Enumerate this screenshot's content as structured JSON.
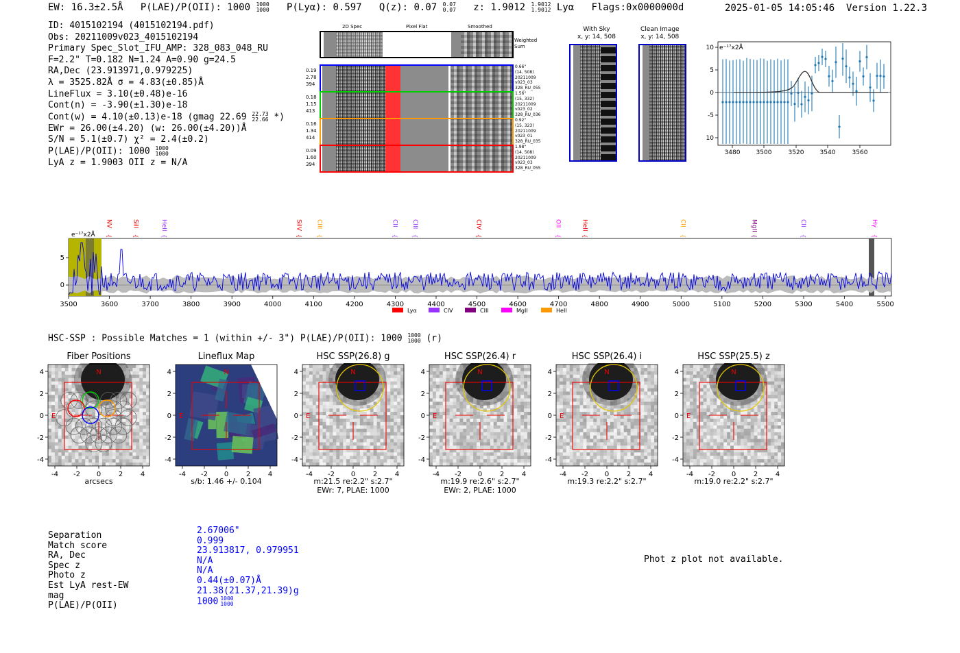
{
  "header": {
    "ew": "EW: 16.3±2.5Å",
    "plae_label": "P(LAE)/P(OII): 1000",
    "plae_sup": "1000",
    "plae_sub": "1000",
    "plya": "P(Lyα): 0.597",
    "qz_label": "Q(z): 0.07",
    "qz_sup": "0.07",
    "qz_sub": "0.07",
    "z_label": "z: 1.9012",
    "z_sup": "1.9012",
    "z_sub": "1.9012",
    "z_line": "Lyα",
    "flags": "Flags:0x0000000d",
    "datetime": "2025-01-05 14:05:46",
    "version": "Version 1.22.3"
  },
  "info": {
    "id": "ID: 4015102194 (4015102194.pdf)",
    "obs": "Obs: 20211009v023_4015102194",
    "primary": "Primary Spec_Slot_IFU_AMP: 328_083_048_RU",
    "params": "F=2.2\"  T=0.182  N=1.24  A=0.90  g=24.5",
    "radec": "RA,Dec (23.913971,0.979225)",
    "lambda": "λ = 3525.82Å  σ = 4.83(±0.85)Å",
    "lineflux": "LineFlux = 3.10(±0.48)e-16",
    "contn": "Cont(n) = -3.90(±1.30)e-18",
    "contw": "Cont(w) = 4.10(±0.13)e-18 (gmag 22.69",
    "contw_sup": "22.73",
    "contw_sub": "22.66",
    "contw_tail": "*)",
    "ewr": "EWr = 26.00(±4.20) (w: 26.00(±4.20))Å",
    "sn": "S/N = 5.1(±0.7)  χ² = 2.4(±0.2)",
    "plae": "P(LAE)/P(OII): 1000",
    "plae_sup": "1000",
    "plae_sub": "1000",
    "lya": "LyA z = 1.9003  OII z = N/A"
  },
  "cutouts": {
    "col_2d": "2D Spec",
    "col_pf": "Pixel Flat",
    "col_sm": "Smoothed",
    "weighted": "Weighted",
    "sum": "Sum",
    "rows": [
      {
        "l1": "0.19",
        "l2": "2.78",
        "l3": "394",
        "r1": "0.66\"",
        "r2": "(14, 508)",
        "r3": "20211009",
        "r4": "v023_03",
        "r5": "328_RU_055",
        "color": "#0000ff"
      },
      {
        "l1": "0.18",
        "l2": "1.15",
        "l3": "413",
        "r1": "1.56\"",
        "r2": "(15, 332)",
        "r3": "20211009",
        "r4": "v023_02",
        "r5": "328_RU_036",
        "color": "#00cc00"
      },
      {
        "l1": "0.16",
        "l2": "1.34",
        "l3": "414",
        "r1": "0.92\"",
        "r2": "(15, 323)",
        "r3": "20211009",
        "r4": "v023_01",
        "r5": "328_RU_035",
        "color": "#ff9900"
      },
      {
        "l1": "0.09",
        "l2": "1.60",
        "l3": "394",
        "r1": "1.98\"",
        "r2": "(14, 508)",
        "r3": "20211009",
        "r4": "v023_03",
        "r5": "328_RU_055",
        "color": "#ff0000"
      }
    ],
    "with_sky": "With Sky",
    "with_sky_xy": "x, y: 14, 508",
    "clean": "Clean Image",
    "clean_xy": "x, y: 14, 508"
  },
  "zoom_chart": {
    "ylabel": "e⁻¹⁷x2Å",
    "xticks": [
      "3480",
      "3500",
      "3520",
      "3540",
      "3560"
    ],
    "yticks": [
      "10",
      "5",
      "0",
      "-5",
      "-10"
    ]
  },
  "full_spectrum": {
    "ylabel": "e⁻¹⁷x2Å",
    "xticks": [
      "3500",
      "3600",
      "3700",
      "3800",
      "3900",
      "4000",
      "4100",
      "4200",
      "4300",
      "4400",
      "4500",
      "4600",
      "4700",
      "4800",
      "4900",
      "5000",
      "5100",
      "5200",
      "5300",
      "5400",
      "5500"
    ],
    "yticks": [
      "5",
      "0"
    ],
    "lines": [
      {
        "name": "NV",
        "w": 3590,
        "color": "#e60000"
      },
      {
        "name": "SiII",
        "w": 3655,
        "color": "#e60000"
      },
      {
        "name": "HeII",
        "w": 3725,
        "color": "#9933ff"
      },
      {
        "name": "SiIV",
        "w": 4055,
        "color": "#e60000"
      },
      {
        "name": "CIII",
        "w": 4105,
        "color": "#ff9900"
      },
      {
        "name": "CII",
        "w": 4290,
        "color": "#9933ff"
      },
      {
        "name": "CIII",
        "w": 4340,
        "color": "#9933ff"
      },
      {
        "name": "CIV",
        "w": 4495,
        "color": "#e60000"
      },
      {
        "name": "OII",
        "w": 4690,
        "color": "#ff00ff"
      },
      {
        "name": "HeII",
        "w": 4755,
        "color": "#e60000"
      },
      {
        "name": "CII",
        "w": 4995,
        "color": "#ff9900"
      },
      {
        "name": "MgII",
        "w": 5170,
        "color": "#800080"
      },
      {
        "name": "CII",
        "w": 5290,
        "color": "#9933ff"
      },
      {
        "name": "Hγ",
        "w": 5465,
        "color": "#ff00ff"
      }
    ],
    "legend": [
      {
        "label": "Lyα",
        "color": "#ff0000"
      },
      {
        "label": "CIV",
        "color": "#9933ff"
      },
      {
        "label": "CIII",
        "color": "#800080"
      },
      {
        "label": "MgII",
        "color": "#ff00ff"
      },
      {
        "label": "HeII",
        "color": "#ff9900"
      }
    ]
  },
  "hsc": {
    "heading": "HSC-SSP : Possible Matches = 1 (within +/- 3\")  P(LAE)/P(OII): 1000",
    "heading_sup": "1000",
    "heading_sub": "1000",
    "heading_tail": "(r)",
    "panels": [
      {
        "title": "Fiber Positions",
        "cap1": "arcsecs",
        "cap2": ""
      },
      {
        "title": "Lineflux Map",
        "cap1": "s/b: 1.46 +/- 0.104",
        "cap2": ""
      },
      {
        "title": "HSC SSP(26.8) g",
        "cap1": "m:21.5  re:2.2\"  s:2.7\"",
        "cap2": "EWr: 7, PLAE: 1000"
      },
      {
        "title": "HSC SSP(26.4) r",
        "cap1": "m:19.9  re:2.6\"  s:2.7\"",
        "cap2": "EWr: 2, PLAE: 1000"
      },
      {
        "title": "HSC SSP(26.4) i",
        "cap1": "m:19.3  re:2.2\"  s:2.7\"",
        "cap2": ""
      },
      {
        "title": "HSC SSP(25.5) z",
        "cap1": "m:19.0  re:2.2\"  s:2.7\"",
        "cap2": ""
      }
    ],
    "ticks": [
      "-4",
      "-2",
      "0",
      "2",
      "4"
    ],
    "yticks": [
      "4",
      "2",
      "0",
      "-2",
      "-4"
    ],
    "north": "N",
    "east": "E"
  },
  "match": {
    "labels": [
      "Separation",
      "Match score",
      "RA, Dec",
      "Spec z",
      "Photo z",
      "Est LyA rest-EW",
      "mag",
      "P(LAE)/P(OII)"
    ],
    "values": [
      "2.67006\"",
      "0.999",
      "23.913817, 0.979951",
      "N/A",
      "N/A",
      "0.44(±0.07)Å",
      "21.38(21.37,21.39)g",
      "1000"
    ],
    "plae_sup": "1000",
    "plae_sub": "1000",
    "photz_note": "Phot z plot not available."
  }
}
